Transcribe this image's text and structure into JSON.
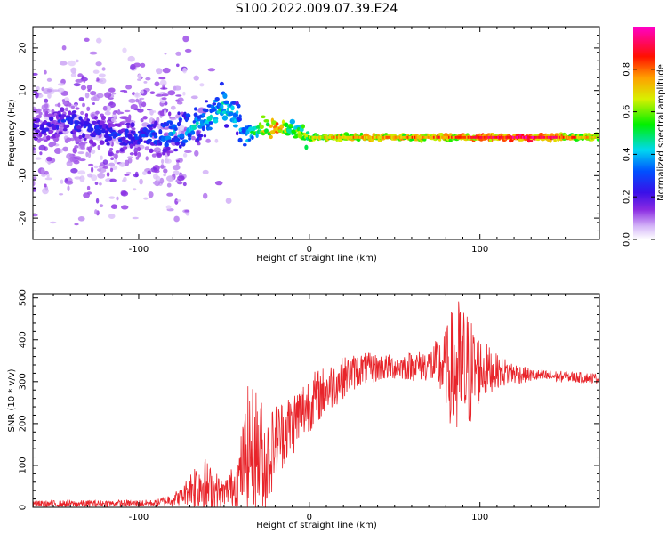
{
  "figure": {
    "title": "S100.2022.009.07.39.E24"
  },
  "chart_data": [
    {
      "type": "heatmap",
      "title": "S100.2022.009.07.39.E24",
      "xlabel": "Height of straight line (km)",
      "ylabel": "Frequency (Hz)",
      "xlim": [
        -162,
        170
      ],
      "ylim": [
        -25,
        25
      ],
      "xticks": [
        -100,
        0,
        100
      ],
      "yticks": [
        -20,
        -10,
        0,
        10,
        20
      ],
      "colorbar": {
        "label": "Normalized spectral amplitude",
        "range": [
          0,
          1
        ],
        "ticks": [
          0.0,
          0.2,
          0.4,
          0.6,
          0.8
        ],
        "colormap": "rainbow (white-purple-blue-cyan-green-yellow-orange-red-magenta)"
      },
      "ridge": [
        {
          "x": -160,
          "freq": 1,
          "amp": 0.25
        },
        {
          "x": -140,
          "freq": 3,
          "amp": 0.3
        },
        {
          "x": -120,
          "freq": 0,
          "amp": 0.3
        },
        {
          "x": -100,
          "freq": -1,
          "amp": 0.3
        },
        {
          "x": -85,
          "freq": 0,
          "amp": 0.4
        },
        {
          "x": -70,
          "freq": 1,
          "amp": 0.45
        },
        {
          "x": -60,
          "freq": 3,
          "amp": 0.45
        },
        {
          "x": -50,
          "freq": 6,
          "amp": 0.5
        },
        {
          "x": -42,
          "freq": 3,
          "amp": 0.45
        },
        {
          "x": -38,
          "freq": -1,
          "amp": 0.4
        },
        {
          "x": -30,
          "freq": 1,
          "amp": 0.6
        },
        {
          "x": -20,
          "freq": 1,
          "amp": 0.9
        },
        {
          "x": -10,
          "freq": 1,
          "amp": 0.6
        },
        {
          "x": 0,
          "freq": -1,
          "amp": 0.65
        },
        {
          "x": 20,
          "freq": -1,
          "amp": 0.75
        },
        {
          "x": 50,
          "freq": -1,
          "amp": 0.75
        },
        {
          "x": 80,
          "freq": -1,
          "amp": 0.8
        },
        {
          "x": 100,
          "freq": -1,
          "amp": 0.85
        },
        {
          "x": 130,
          "freq": -1,
          "amp": 0.95
        },
        {
          "x": 165,
          "freq": -1,
          "amp": 0.7
        }
      ]
    },
    {
      "type": "line",
      "xlabel": "Height of straight line (km)",
      "ylabel": "SNR (10 * v/v)",
      "xlim": [
        -162,
        170
      ],
      "ylim": [
        0,
        510
      ],
      "xticks": [
        -100,
        0,
        100
      ],
      "yticks": [
        0,
        100,
        200,
        300,
        400,
        500
      ],
      "color": "#e8242a",
      "envelope": [
        {
          "x": -162,
          "base": 8,
          "spread": 8
        },
        {
          "x": -90,
          "base": 10,
          "spread": 8
        },
        {
          "x": -75,
          "base": 25,
          "spread": 20
        },
        {
          "x": -70,
          "base": 45,
          "spread": 40
        },
        {
          "x": -64,
          "base": 60,
          "spread": 80
        },
        {
          "x": -58,
          "base": 40,
          "spread": 60
        },
        {
          "x": -50,
          "base": 35,
          "spread": 30
        },
        {
          "x": -42,
          "base": 60,
          "spread": 60
        },
        {
          "x": -36,
          "base": 140,
          "spread": 150
        },
        {
          "x": -30,
          "base": 130,
          "spread": 160
        },
        {
          "x": -25,
          "base": 100,
          "spread": 120
        },
        {
          "x": -20,
          "base": 160,
          "spread": 90
        },
        {
          "x": -10,
          "base": 200,
          "spread": 80
        },
        {
          "x": 0,
          "base": 250,
          "spread": 70
        },
        {
          "x": 10,
          "base": 280,
          "spread": 60
        },
        {
          "x": 20,
          "base": 310,
          "spread": 50
        },
        {
          "x": 30,
          "base": 330,
          "spread": 40
        },
        {
          "x": 50,
          "base": 335,
          "spread": 30
        },
        {
          "x": 70,
          "base": 340,
          "spread": 40
        },
        {
          "x": 80,
          "base": 335,
          "spread": 90
        },
        {
          "x": 86,
          "base": 320,
          "spread": 190
        },
        {
          "x": 92,
          "base": 320,
          "spread": 160
        },
        {
          "x": 100,
          "base": 330,
          "spread": 80
        },
        {
          "x": 110,
          "base": 325,
          "spread": 40
        },
        {
          "x": 130,
          "base": 315,
          "spread": 15
        },
        {
          "x": 170,
          "base": 308,
          "spread": 12
        }
      ]
    }
  ]
}
